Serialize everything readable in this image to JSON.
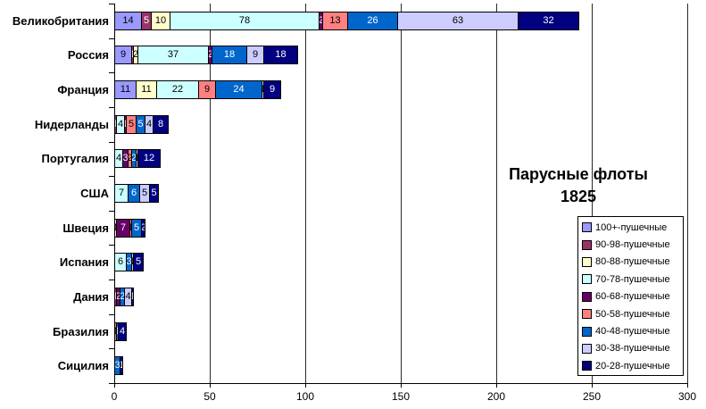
{
  "title": {
    "line1": "Парусные флоты",
    "line2": "1825"
  },
  "chart_data": {
    "type": "bar",
    "orientation": "horizontal-stacked",
    "title": "Парусные флоты 1825",
    "categories": [
      "Великобритания",
      "Россия",
      "Франция",
      "Нидерланды",
      "Португалия",
      "США",
      "Швеция",
      "Испания",
      "Дания",
      "Бразилия",
      "Сицилия"
    ],
    "series": [
      {
        "name": "100+-пушечные",
        "color": "#9999FF",
        "values": [
          14,
          9,
          11,
          0,
          0,
          0,
          0,
          0,
          0,
          0,
          0
        ]
      },
      {
        "name": "90-98-пушечные",
        "color": "#993366",
        "values": [
          5,
          1,
          0,
          1,
          0,
          0,
          0,
          0,
          1,
          0,
          0
        ]
      },
      {
        "name": "80-88-пушечные",
        "color": "#FFFFCC",
        "values": [
          10,
          2,
          11,
          0,
          0,
          0,
          1,
          0,
          0,
          0,
          0
        ]
      },
      {
        "name": "70-78-пушечные",
        "color": "#CCFFFF",
        "values": [
          78,
          37,
          22,
          4,
          4,
          7,
          0,
          6,
          0,
          0,
          0
        ]
      },
      {
        "name": "60-68-пушечные",
        "color": "#660066",
        "values": [
          2,
          2,
          0,
          1,
          3,
          0,
          7,
          0,
          2,
          0,
          0
        ]
      },
      {
        "name": "50-58-пушечные",
        "color": "#FF8080",
        "values": [
          13,
          0,
          9,
          5,
          2,
          0,
          1,
          0,
          0,
          1,
          0
        ]
      },
      {
        "name": "40-48-пушечные",
        "color": "#0066CC",
        "values": [
          26,
          18,
          24,
          5,
          2,
          6,
          5,
          3,
          2,
          1,
          3
        ]
      },
      {
        "name": "30-38-пушечные",
        "color": "#CCCCFF",
        "values": [
          63,
          9,
          1,
          4,
          1,
          5,
          0,
          1,
          4,
          0,
          0
        ]
      },
      {
        "name": "20-28-пушечные",
        "color": "#000080",
        "values": [
          32,
          18,
          9,
          8,
          12,
          5,
          2,
          5,
          1,
          4,
          1
        ]
      }
    ],
    "x_ticks": [
      "0",
      "50",
      "100",
      "150",
      "200",
      "250",
      "300"
    ],
    "xlim": [
      0,
      300
    ],
    "grid": true,
    "legend_position": "right-inside",
    "dark_segment_colors": [
      "#993366",
      "#660066",
      "#0066CC",
      "#000080"
    ]
  }
}
